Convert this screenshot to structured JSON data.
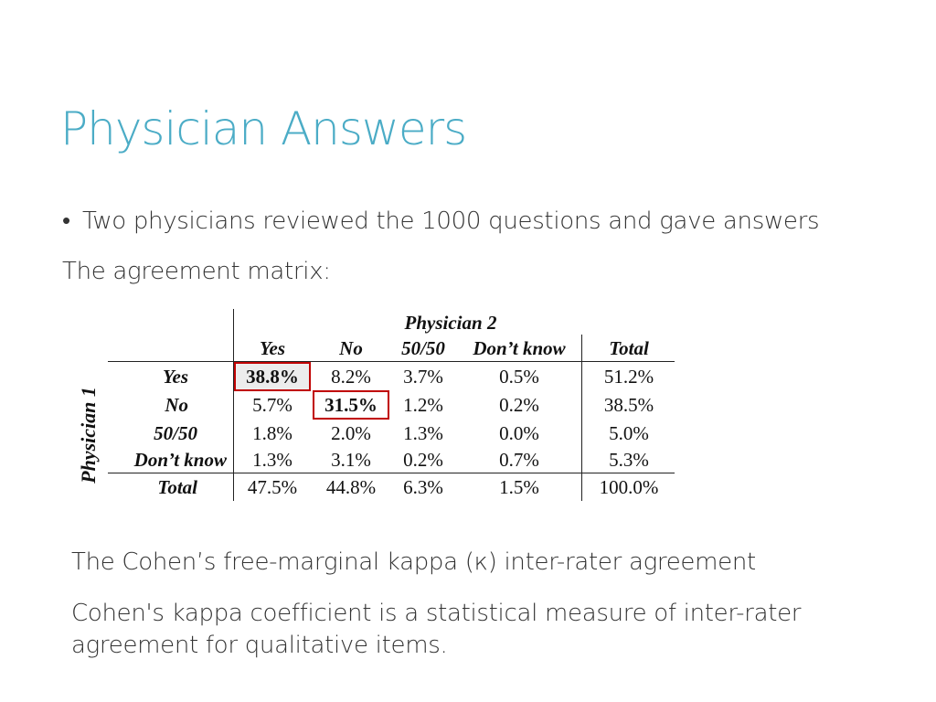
{
  "slide": {
    "title": "Physician Answers",
    "bullet": "Two physicians reviewed the 1000 questions and gave answers",
    "matrix_label": "The agreement matrix:",
    "kappa_title": "The Cohen’s free-marginal kappa (κ) inter-rater agreement",
    "kappa_description": "Cohen's kappa coefficient is a statistical measure of inter-rater agreement for qualitative items."
  },
  "matrix": {
    "column_group_label": "Physician 2",
    "row_group_label": "Physician 1",
    "columns": [
      "Yes",
      "No",
      "50/50",
      "Don’t know",
      "Total"
    ],
    "rows": [
      {
        "label": "Yes",
        "values": [
          "38.8%",
          "8.2%",
          "3.7%",
          "0.5%",
          "51.2%"
        ]
      },
      {
        "label": "No",
        "values": [
          "5.7%",
          "31.5%",
          "1.2%",
          "0.2%",
          "38.5%"
        ]
      },
      {
        "label": "50/50",
        "values": [
          "1.8%",
          "2.0%",
          "1.3%",
          "0.0%",
          "5.0%"
        ]
      },
      {
        "label": "Don’t know",
        "values": [
          "1.3%",
          "3.1%",
          "0.2%",
          "0.7%",
          "5.3%"
        ]
      },
      {
        "label": "Total",
        "values": [
          "47.5%",
          "44.8%",
          "6.3%",
          "1.5%",
          "100.0%"
        ]
      }
    ],
    "highlight_color": "#c00000"
  }
}
